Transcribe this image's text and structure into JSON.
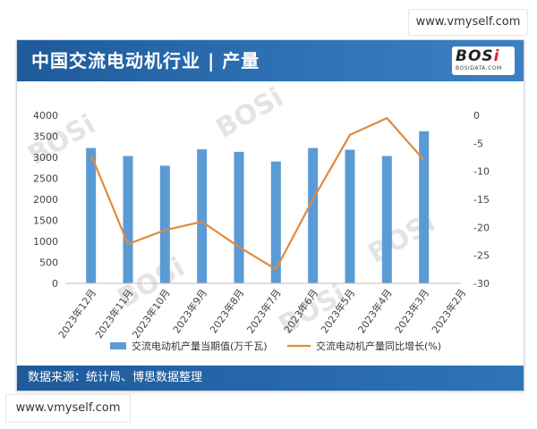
{
  "watermarks": {
    "top": "www.vmyself.com",
    "bottom": "www.vmyself.com"
  },
  "header": {
    "title": "中国交流电动机行业 | 产量",
    "logo_main_a": "BOS",
    "logo_main_b": "i",
    "logo_sub": "BOSIDATA.COM"
  },
  "footer": {
    "source": "数据来源：统计局、博思数据整理"
  },
  "colors": {
    "bar": "#5b9bd5",
    "line": "#e08a3c",
    "header": "#2a6aab"
  },
  "chart_data": {
    "type": "bar",
    "categories": [
      "2023年12月",
      "2023年11月",
      "2023年10月",
      "2023年9月",
      "2023年8月",
      "2023年7月",
      "2023年6月",
      "2023年5月",
      "2023年4月",
      "2023年3月",
      "2023年2月"
    ],
    "series": [
      {
        "name": "交流电动机产量当期值(万千瓦)",
        "type": "bar",
        "axis": "left",
        "values": [
          3220,
          3030,
          2800,
          3190,
          3130,
          2900,
          3220,
          3180,
          3030,
          3620,
          null
        ]
      },
      {
        "name": "交流电动机产量同比增长(%)",
        "type": "line",
        "axis": "right",
        "values": [
          -7,
          -23,
          -20.5,
          -19,
          -23.5,
          -27.5,
          -15,
          -3.5,
          -0.5,
          -8,
          null
        ]
      }
    ],
    "left_axis": {
      "ylim": [
        0,
        4000
      ],
      "ticks": [
        0,
        500,
        1000,
        1500,
        2000,
        2500,
        3000,
        3500,
        4000
      ]
    },
    "right_axis": {
      "ylim": [
        -30,
        0
      ],
      "ticks": [
        0,
        -5,
        -10,
        -15,
        -20,
        -25,
        -30
      ]
    },
    "legend": {
      "position": "bottom",
      "items": [
        "交流电动机产量当期值(万千瓦)",
        "交流电动机产量同比增长(%)"
      ]
    },
    "grid": false
  }
}
